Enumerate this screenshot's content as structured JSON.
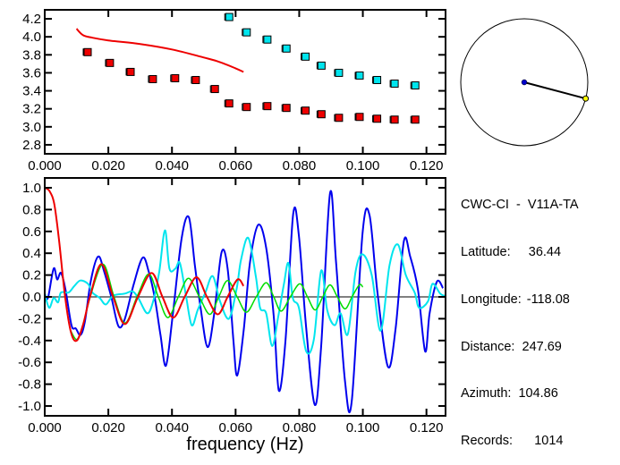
{
  "info_panel": {
    "title": "CWC-CI  -  V11A-TA",
    "lines": [
      {
        "label": "Latitude:",
        "value": "36.44",
        "text": "Latitude:     36.44"
      },
      {
        "label": "Longitude:",
        "value": "-118.08",
        "text": "Longitude: −118.08"
      },
      {
        "label": "Distance:",
        "value": "247.69",
        "text": "Distance:  247.69"
      },
      {
        "label": "Azimuth:",
        "value": "104.86",
        "text": "Azimuth:  104.86"
      },
      {
        "label": "Records:",
        "value": "1014",
        "text": "Records:      1014"
      }
    ]
  },
  "azimuth_circle": {
    "azimuth_deg": 104.86,
    "center_color": "#0000cc",
    "end_color": "#ffff00"
  },
  "chart_data": [
    {
      "type": "scatter",
      "xlim": [
        0,
        0.126
      ],
      "ylim": [
        2.7,
        4.3
      ],
      "x_ticks": [
        "0.000",
        "0.020",
        "0.040",
        "0.060",
        "0.080",
        "0.100",
        "0.120"
      ],
      "x_tick_values": [
        0,
        0.02,
        0.04,
        0.06,
        0.08,
        0.1,
        0.12
      ],
      "y_ticks": [
        "2.8",
        "3.0",
        "3.2",
        "3.4",
        "3.6",
        "3.8",
        "4.0",
        "4.2"
      ],
      "y_tick_values": [
        2.8,
        3.0,
        3.2,
        3.4,
        3.6,
        3.8,
        4.0,
        4.2
      ],
      "grid": false,
      "series": [
        {
          "kind": "line",
          "color": "#ee0000",
          "points": [
            [
              0.01,
              4.09
            ],
            [
              0.012,
              4.02
            ],
            [
              0.015,
              3.99
            ],
            [
              0.02,
              3.96
            ],
            [
              0.03,
              3.92
            ],
            [
              0.04,
              3.86
            ],
            [
              0.05,
              3.77
            ],
            [
              0.055,
              3.72
            ],
            [
              0.06,
              3.65
            ],
            [
              0.0625,
              3.61
            ]
          ]
        },
        {
          "kind": "markers",
          "color": "#ee0000",
          "points": [
            [
              0.0135,
              3.83
            ],
            [
              0.0205,
              3.71
            ],
            [
              0.027,
              3.61
            ],
            [
              0.034,
              3.53
            ],
            [
              0.041,
              3.54
            ],
            [
              0.0475,
              3.52
            ],
            [
              0.0535,
              3.42
            ],
            [
              0.058,
              3.26
            ],
            [
              0.0635,
              3.22
            ],
            [
              0.07,
              3.23
            ],
            [
              0.076,
              3.21
            ],
            [
              0.082,
              3.18
            ],
            [
              0.087,
              3.14
            ],
            [
              0.0925,
              3.1
            ],
            [
              0.099,
              3.11
            ],
            [
              0.1045,
              3.09
            ],
            [
              0.11,
              3.08
            ],
            [
              0.1165,
              3.08
            ]
          ]
        },
        {
          "kind": "markers",
          "color": "#00e5ee",
          "points": [
            [
              0.058,
              4.22
            ],
            [
              0.0635,
              4.05
            ],
            [
              0.07,
              3.97
            ],
            [
              0.076,
              3.87
            ],
            [
              0.082,
              3.78
            ],
            [
              0.087,
              3.68
            ],
            [
              0.0925,
              3.6
            ],
            [
              0.099,
              3.57
            ],
            [
              0.1045,
              3.52
            ],
            [
              0.11,
              3.48
            ],
            [
              0.1165,
              3.46
            ]
          ]
        }
      ]
    },
    {
      "type": "line",
      "xlabel": "frequency (Hz)",
      "xlim": [
        0,
        0.126
      ],
      "ylim": [
        -1.09,
        1.09
      ],
      "x_ticks": [
        "0.000",
        "0.020",
        "0.040",
        "0.060",
        "0.080",
        "0.100",
        "0.120"
      ],
      "x_tick_values": [
        0,
        0.02,
        0.04,
        0.06,
        0.08,
        0.1,
        0.12
      ],
      "y_ticks": [
        "-1.0",
        "-0.8",
        "-0.6",
        "-0.4",
        "-0.2",
        "0.0",
        "0.2",
        "0.4",
        "0.6",
        "0.8",
        "1.0"
      ],
      "y_tick_values": [
        -1.0,
        -0.8,
        -0.6,
        -0.4,
        -0.2,
        0.0,
        0.2,
        0.4,
        0.6,
        0.8,
        1.0
      ],
      "grid": false,
      "zero_line": true,
      "series": [
        {
          "color": "#0000ee",
          "width": 2,
          "points": [
            [
              0,
              0.03
            ],
            [
              0.001,
              -0.01
            ],
            [
              0.0028,
              0.26
            ],
            [
              0.0039,
              0.16
            ],
            [
              0.0051,
              0.22
            ],
            [
              0.0065,
              0.07
            ],
            [
              0.0084,
              -0.26
            ],
            [
              0.0098,
              -0.29
            ],
            [
              0.0112,
              -0.35
            ],
            [
              0.0126,
              -0.23
            ],
            [
              0.0145,
              0.15
            ],
            [
              0.0168,
              0.37
            ],
            [
              0.0187,
              0.23
            ],
            [
              0.021,
              -0.01
            ],
            [
              0.0232,
              -0.27
            ],
            [
              0.0252,
              -0.2
            ],
            [
              0.028,
              0.12
            ],
            [
              0.0308,
              0.36
            ],
            [
              0.0327,
              0.23
            ],
            [
              0.0346,
              -0.01
            ],
            [
              0.0364,
              -0.35
            ],
            [
              0.0381,
              -0.63
            ],
            [
              0.0402,
              -0.18
            ],
            [
              0.043,
              0.53
            ],
            [
              0.0453,
              0.73
            ],
            [
              0.0472,
              0.29
            ],
            [
              0.049,
              -0.1
            ],
            [
              0.0512,
              -0.46
            ],
            [
              0.0533,
              -0.15
            ],
            [
              0.0556,
              0.41
            ],
            [
              0.0575,
              0.26
            ],
            [
              0.0593,
              -0.39
            ],
            [
              0.0605,
              -0.72
            ],
            [
              0.0626,
              -0.29
            ],
            [
              0.0645,
              0.31
            ],
            [
              0.0671,
              0.66
            ],
            [
              0.0696,
              0.45
            ],
            [
              0.072,
              -0.18
            ],
            [
              0.0736,
              -0.86
            ],
            [
              0.0757,
              -0.39
            ],
            [
              0.0781,
              0.76
            ],
            [
              0.0799,
              0.56
            ],
            [
              0.0822,
              -0.29
            ],
            [
              0.0849,
              -0.99
            ],
            [
              0.0869,
              -0.45
            ],
            [
              0.0897,
              0.95
            ],
            [
              0.0916,
              0.31
            ],
            [
              0.0944,
              -0.77
            ],
            [
              0.0965,
              -0.96
            ],
            [
              0.0999,
              0.58
            ],
            [
              0.1021,
              0.75
            ],
            [
              0.1046,
              0.04
            ],
            [
              0.1079,
              -0.64
            ],
            [
              0.1103,
              -0.29
            ],
            [
              0.1129,
              0.51
            ],
            [
              0.1149,
              0.37
            ],
            [
              0.1173,
              0.07
            ],
            [
              0.1196,
              -0.5
            ],
            [
              0.121,
              -0.15
            ],
            [
              0.1233,
              0.14
            ],
            [
              0.1252,
              0.08
            ]
          ]
        },
        {
          "color": "#00e5ee",
          "width": 2,
          "points": [
            [
              0,
              0.03
            ],
            [
              0.0014,
              -0.1
            ],
            [
              0.0028,
              -0.01
            ],
            [
              0.0042,
              -0.05
            ],
            [
              0.0051,
              0.04
            ],
            [
              0.0075,
              0.04
            ],
            [
              0.0093,
              0.1
            ],
            [
              0.0112,
              0.15
            ],
            [
              0.0136,
              0.12
            ],
            [
              0.015,
              0.04
            ],
            [
              0.0173,
              -0.01
            ],
            [
              0.0192,
              -0.07
            ],
            [
              0.0215,
              0.01
            ],
            [
              0.0252,
              0.03
            ],
            [
              0.0276,
              0.05
            ],
            [
              0.0294,
              -0.01
            ],
            [
              0.0322,
              -0.15
            ],
            [
              0.0341,
              -0.04
            ],
            [
              0.036,
              0.23
            ],
            [
              0.0378,
              0.61
            ],
            [
              0.0392,
              0.26
            ],
            [
              0.0411,
              0.26
            ],
            [
              0.0425,
              0.31
            ],
            [
              0.0444,
              0.01
            ],
            [
              0.0462,
              -0.26
            ],
            [
              0.0481,
              -0.12
            ],
            [
              0.0505,
              0.04
            ],
            [
              0.0528,
              0.19
            ],
            [
              0.0551,
              -0.04
            ],
            [
              0.0579,
              -0.2
            ],
            [
              0.0603,
              0.07
            ],
            [
              0.0617,
              0.34
            ],
            [
              0.064,
              0.54
            ],
            [
              0.0664,
              0.18
            ],
            [
              0.0677,
              -0.1
            ],
            [
              0.0696,
              -0.15
            ],
            [
              0.0715,
              -0.45
            ],
            [
              0.0734,
              -0.18
            ],
            [
              0.0752,
              0.12
            ],
            [
              0.0766,
              0.31
            ],
            [
              0.078,
              -0.01
            ],
            [
              0.0799,
              -0.1
            ],
            [
              0.0822,
              -0.5
            ],
            [
              0.0846,
              -0.39
            ],
            [
              0.0869,
              0.24
            ],
            [
              0.0888,
              -0.12
            ],
            [
              0.0911,
              -0.26
            ],
            [
              0.093,
              -0.15
            ],
            [
              0.0953,
              -0.34
            ],
            [
              0.0977,
              0.23
            ],
            [
              0.0999,
              0.39
            ],
            [
              0.1028,
              0.2
            ],
            [
              0.1056,
              -0.31
            ],
            [
              0.1084,
              0.29
            ],
            [
              0.111,
              0.48
            ],
            [
              0.1135,
              0.2
            ],
            [
              0.1163,
              0.04
            ],
            [
              0.1177,
              -0.1
            ],
            [
              0.1205,
              -0.04
            ],
            [
              0.1219,
              0.12
            ],
            [
              0.1243,
              0.03
            ],
            [
              0.1257,
              0.01
            ]
          ]
        },
        {
          "color": "#00dd00",
          "width": 1.5,
          "points": [
            [
              0.008,
              -0.3
            ],
            [
              0.0101,
              -0.39
            ],
            [
              0.0121,
              -0.25
            ],
            [
              0.0143,
              0.0
            ],
            [
              0.0183,
              0.3
            ],
            [
              0.0218,
              0.0
            ],
            [
              0.0252,
              -0.24
            ],
            [
              0.029,
              0.0
            ],
            [
              0.0327,
              0.21
            ],
            [
              0.0357,
              0.0
            ],
            [
              0.0387,
              -0.19
            ],
            [
              0.042,
              0.0
            ],
            [
              0.0452,
              0.17
            ],
            [
              0.0486,
              0.0
            ],
            [
              0.0519,
              -0.16
            ],
            [
              0.0547,
              0.0
            ],
            [
              0.0575,
              0.15
            ],
            [
              0.0605,
              0.0
            ],
            [
              0.0634,
              -0.14
            ],
            [
              0.0665,
              0.0
            ],
            [
              0.0696,
              0.13
            ],
            [
              0.072,
              0.0
            ],
            [
              0.0743,
              -0.13
            ],
            [
              0.0772,
              0.0
            ],
            [
              0.0802,
              0.12
            ],
            [
              0.0826,
              0.0
            ],
            [
              0.085,
              -0.12
            ],
            [
              0.0874,
              0.0
            ],
            [
              0.0897,
              0.11
            ],
            [
              0.092,
              0.0
            ],
            [
              0.0944,
              -0.11
            ],
            [
              0.0966,
              0.0
            ],
            [
              0.0989,
              0.11
            ],
            [
              0.1,
              0.09
            ]
          ]
        },
        {
          "color": "#ee0000",
          "width": 2,
          "points": [
            [
              0,
              1.0
            ],
            [
              0.0015,
              0.97
            ],
            [
              0.003,
              0.85
            ],
            [
              0.0045,
              0.52
            ],
            [
              0.0064,
              0.0
            ],
            [
              0.0083,
              -0.33
            ],
            [
              0.0101,
              -0.4
            ],
            [
              0.0121,
              -0.25
            ],
            [
              0.0142,
              0.0
            ],
            [
              0.0178,
              0.3
            ],
            [
              0.0215,
              0.0
            ],
            [
              0.0252,
              -0.25
            ],
            [
              0.0293,
              0.0
            ],
            [
              0.0336,
              0.22
            ],
            [
              0.037,
              0.0
            ],
            [
              0.0404,
              -0.19
            ],
            [
              0.044,
              0.0
            ],
            [
              0.0477,
              0.18
            ],
            [
              0.051,
              0.0
            ],
            [
              0.0544,
              -0.16
            ],
            [
              0.0575,
              0.0
            ],
            [
              0.0606,
              0.16
            ],
            [
              0.0625,
              0.1
            ]
          ]
        }
      ]
    }
  ]
}
